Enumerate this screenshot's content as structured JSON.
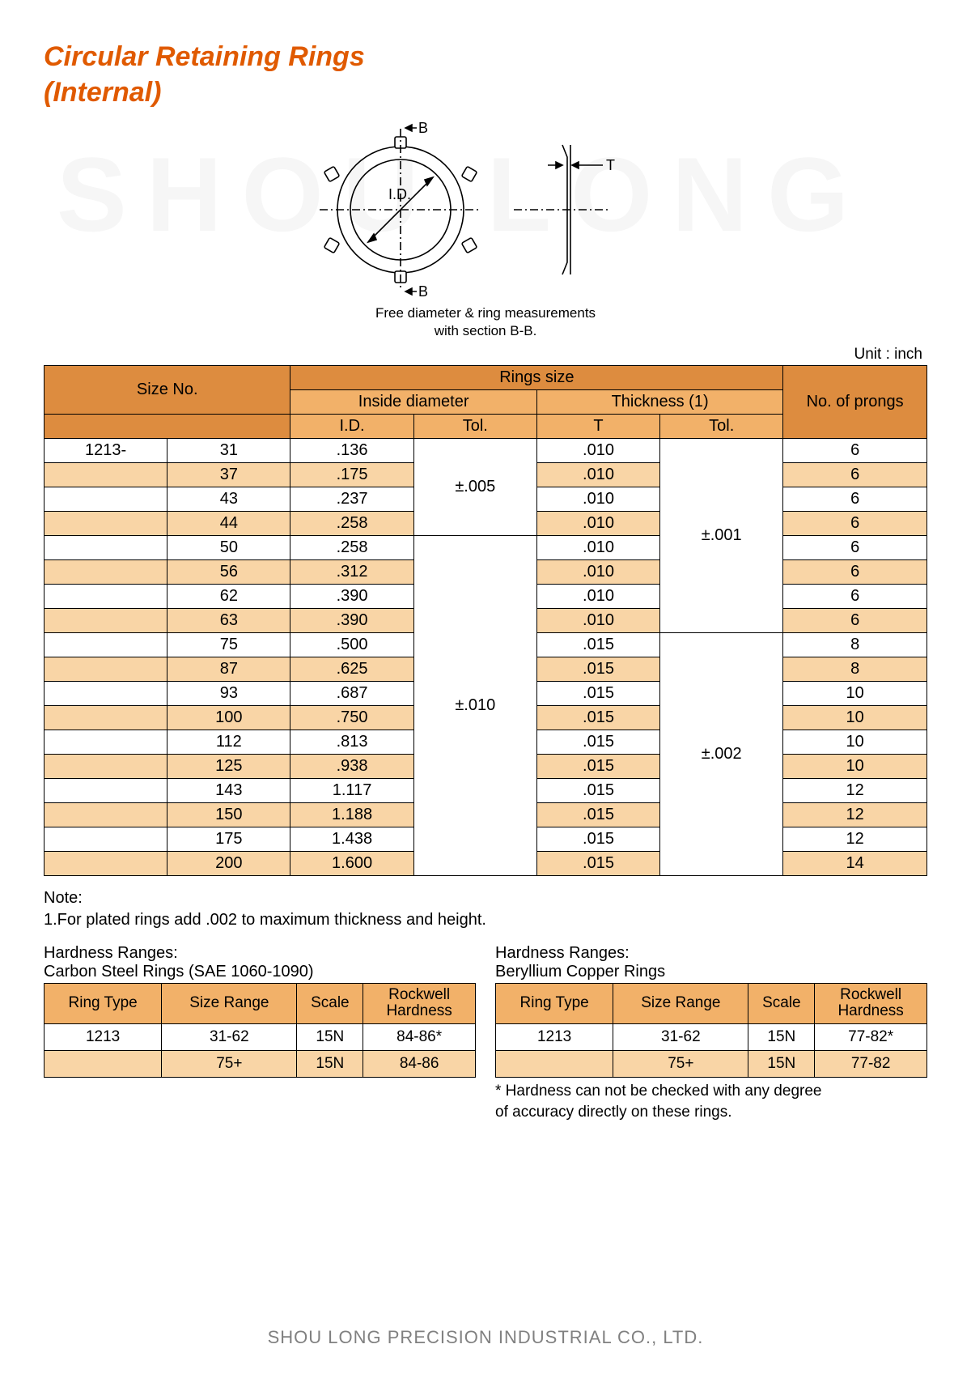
{
  "title_line1": "Circular Retaining Rings",
  "title_line2": "(Internal)",
  "watermark": "SHOU LONG",
  "diagram": {
    "label_B_top": "B",
    "label_B_bottom": "B",
    "label_ID": "I.D.",
    "label_T": "T",
    "caption_line1": "Free diameter & ring measurements",
    "caption_line2": "with section B-B."
  },
  "unit_label": "Unit : inch",
  "table": {
    "hdr_size_no": "Size No.",
    "hdr_rings_size": "Rings size",
    "hdr_inside_dia": "Inside diameter",
    "hdr_thickness": "Thickness (1)",
    "hdr_prongs": "No. of prongs",
    "sub_id": "I.D.",
    "sub_tol1": "Tol.",
    "sub_t": "T",
    "sub_tol2": "Tol.",
    "prefix": "1213-",
    "id_tol1": "±.005",
    "id_tol2": "±.010",
    "t_tol1": "±.001",
    "t_tol2": "±.002",
    "rows": [
      {
        "size": "31",
        "id": ".136",
        "t": ".010",
        "p": "6"
      },
      {
        "size": "37",
        "id": ".175",
        "t": ".010",
        "p": "6"
      },
      {
        "size": "43",
        "id": ".237",
        "t": ".010",
        "p": "6"
      },
      {
        "size": "44",
        "id": ".258",
        "t": ".010",
        "p": "6"
      },
      {
        "size": "50",
        "id": ".258",
        "t": ".010",
        "p": "6"
      },
      {
        "size": "56",
        "id": ".312",
        "t": ".010",
        "p": "6"
      },
      {
        "size": "62",
        "id": ".390",
        "t": ".010",
        "p": "6"
      },
      {
        "size": "63",
        "id": ".390",
        "t": ".010",
        "p": "6"
      },
      {
        "size": "75",
        "id": ".500",
        "t": ".015",
        "p": "8"
      },
      {
        "size": "87",
        "id": ".625",
        "t": ".015",
        "p": "8"
      },
      {
        "size": "93",
        "id": ".687",
        "t": ".015",
        "p": "10"
      },
      {
        "size": "100",
        "id": ".750",
        "t": ".015",
        "p": "10"
      },
      {
        "size": "112",
        "id": ".813",
        "t": ".015",
        "p": "10"
      },
      {
        "size": "125",
        "id": ".938",
        "t": ".015",
        "p": "10"
      },
      {
        "size": "143",
        "id": "1.117",
        "t": ".015",
        "p": "12"
      },
      {
        "size": "150",
        "id": "1.188",
        "t": ".015",
        "p": "12"
      },
      {
        "size": "175",
        "id": "1.438",
        "t": ".015",
        "p": "12"
      },
      {
        "size": "200",
        "id": "1.600",
        "t": ".015",
        "p": "14"
      }
    ]
  },
  "note_label": "Note:",
  "note_text": "1.For plated rings add .002 to maximum thickness and height.",
  "hardness1": {
    "title": "Hardness Ranges:",
    "subtitle": "Carbon Steel Rings (SAE 1060-1090)",
    "h_ringtype": "Ring Type",
    "h_sizerange": "Size Range",
    "h_scale": "Scale",
    "h_rockwell": "Rockwell Hardness",
    "rows": [
      {
        "rt": "1213",
        "sr": "31-62",
        "sc": "15N",
        "rh": "84-86*"
      },
      {
        "rt": "",
        "sr": "75+",
        "sc": "15N",
        "rh": "84-86"
      }
    ]
  },
  "hardness2": {
    "title": "Hardness Ranges:",
    "subtitle": "Beryllium Copper Rings",
    "h_ringtype": "Ring Type",
    "h_sizerange": "Size Range",
    "h_scale": "Scale",
    "h_rockwell": "Rockwell Hardness",
    "rows": [
      {
        "rt": "1213",
        "sr": "31-62",
        "sc": "15N",
        "rh": "77-82*"
      },
      {
        "rt": "",
        "sr": "75+",
        "sc": "15N",
        "rh": "77-82"
      }
    ]
  },
  "disclaimer_line1": "* Hardness can not be checked with any degree",
  "disclaimer_line2": "of accuracy directly on these rings.",
  "footer": "SHOU LONG PRECISION INDUSTRIAL CO., LTD.",
  "colors": {
    "title": "#e05a00",
    "hdr": "#dd8c3f",
    "sub": "#f2b169",
    "alt": "#f9d5a6",
    "footer": "#808080"
  }
}
